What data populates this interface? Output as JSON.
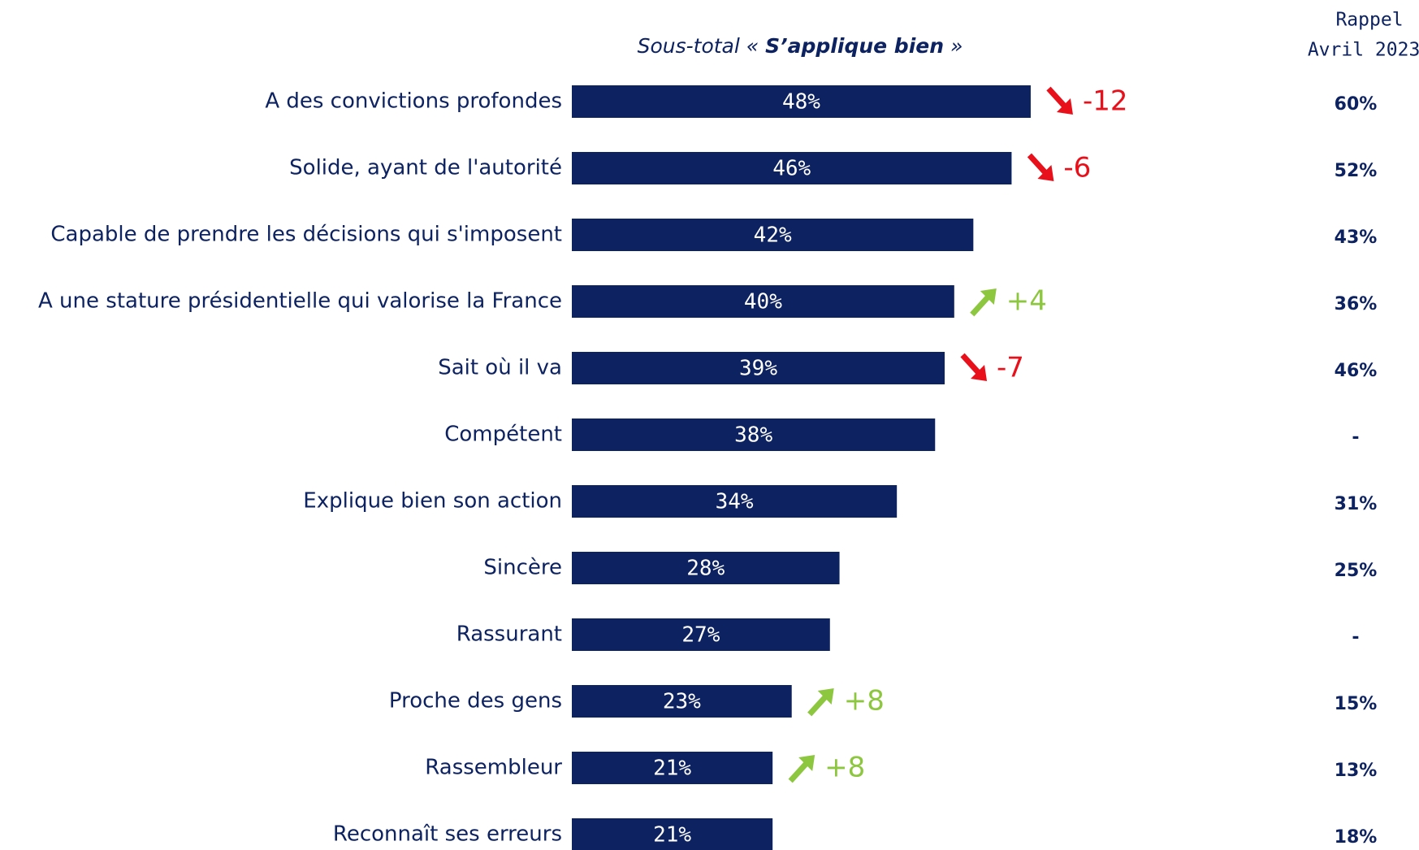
{
  "chart_data": {
    "type": "bar",
    "orientation": "horizontal",
    "subtitle_prefix": "Sous-total « ",
    "subtitle_emphasis": "S’applique bien",
    "subtitle_suffix": " »",
    "recall_header": [
      "Rappel",
      "Avril 2023*"
    ],
    "categories": [
      "A des convictions profondes",
      "Solide, ayant de l'autorité",
      "Capable de prendre les décisions qui s'imposent",
      "A une stature présidentielle qui valorise la France",
      "Sait où il va",
      "Compétent",
      "Explique bien son action",
      "Sincère",
      "Rassurant",
      "Proche des gens",
      "Rassembleur",
      "Reconnaît ses erreurs"
    ],
    "values": [
      48,
      46,
      42,
      40,
      39,
      38,
      34,
      28,
      27,
      23,
      21,
      21
    ],
    "value_labels": [
      "48%",
      "46%",
      "42%",
      "40%",
      "39%",
      "38%",
      "34%",
      "28%",
      "27%",
      "23%",
      "21%",
      "21%"
    ],
    "color": "#0d2260",
    "xlim": [
      0,
      100
    ],
    "changes": [
      -12,
      -6,
      null,
      4,
      -7,
      null,
      null,
      null,
      null,
      8,
      8,
      null
    ],
    "change_labels": [
      "-12",
      "-6",
      null,
      "+4",
      "-7",
      null,
      null,
      null,
      null,
      "+8",
      "+8",
      null
    ],
    "up_color": "#8dc63f",
    "down_color": "#e8101a",
    "recall": [
      60,
      52,
      43,
      36,
      46,
      null,
      31,
      25,
      null,
      15,
      13,
      18
    ],
    "recall_labels": [
      "60%",
      "52%",
      "43%",
      "36%",
      "46%",
      "-",
      "31%",
      "25%",
      "-",
      "15%",
      "13%",
      "18%"
    ]
  }
}
